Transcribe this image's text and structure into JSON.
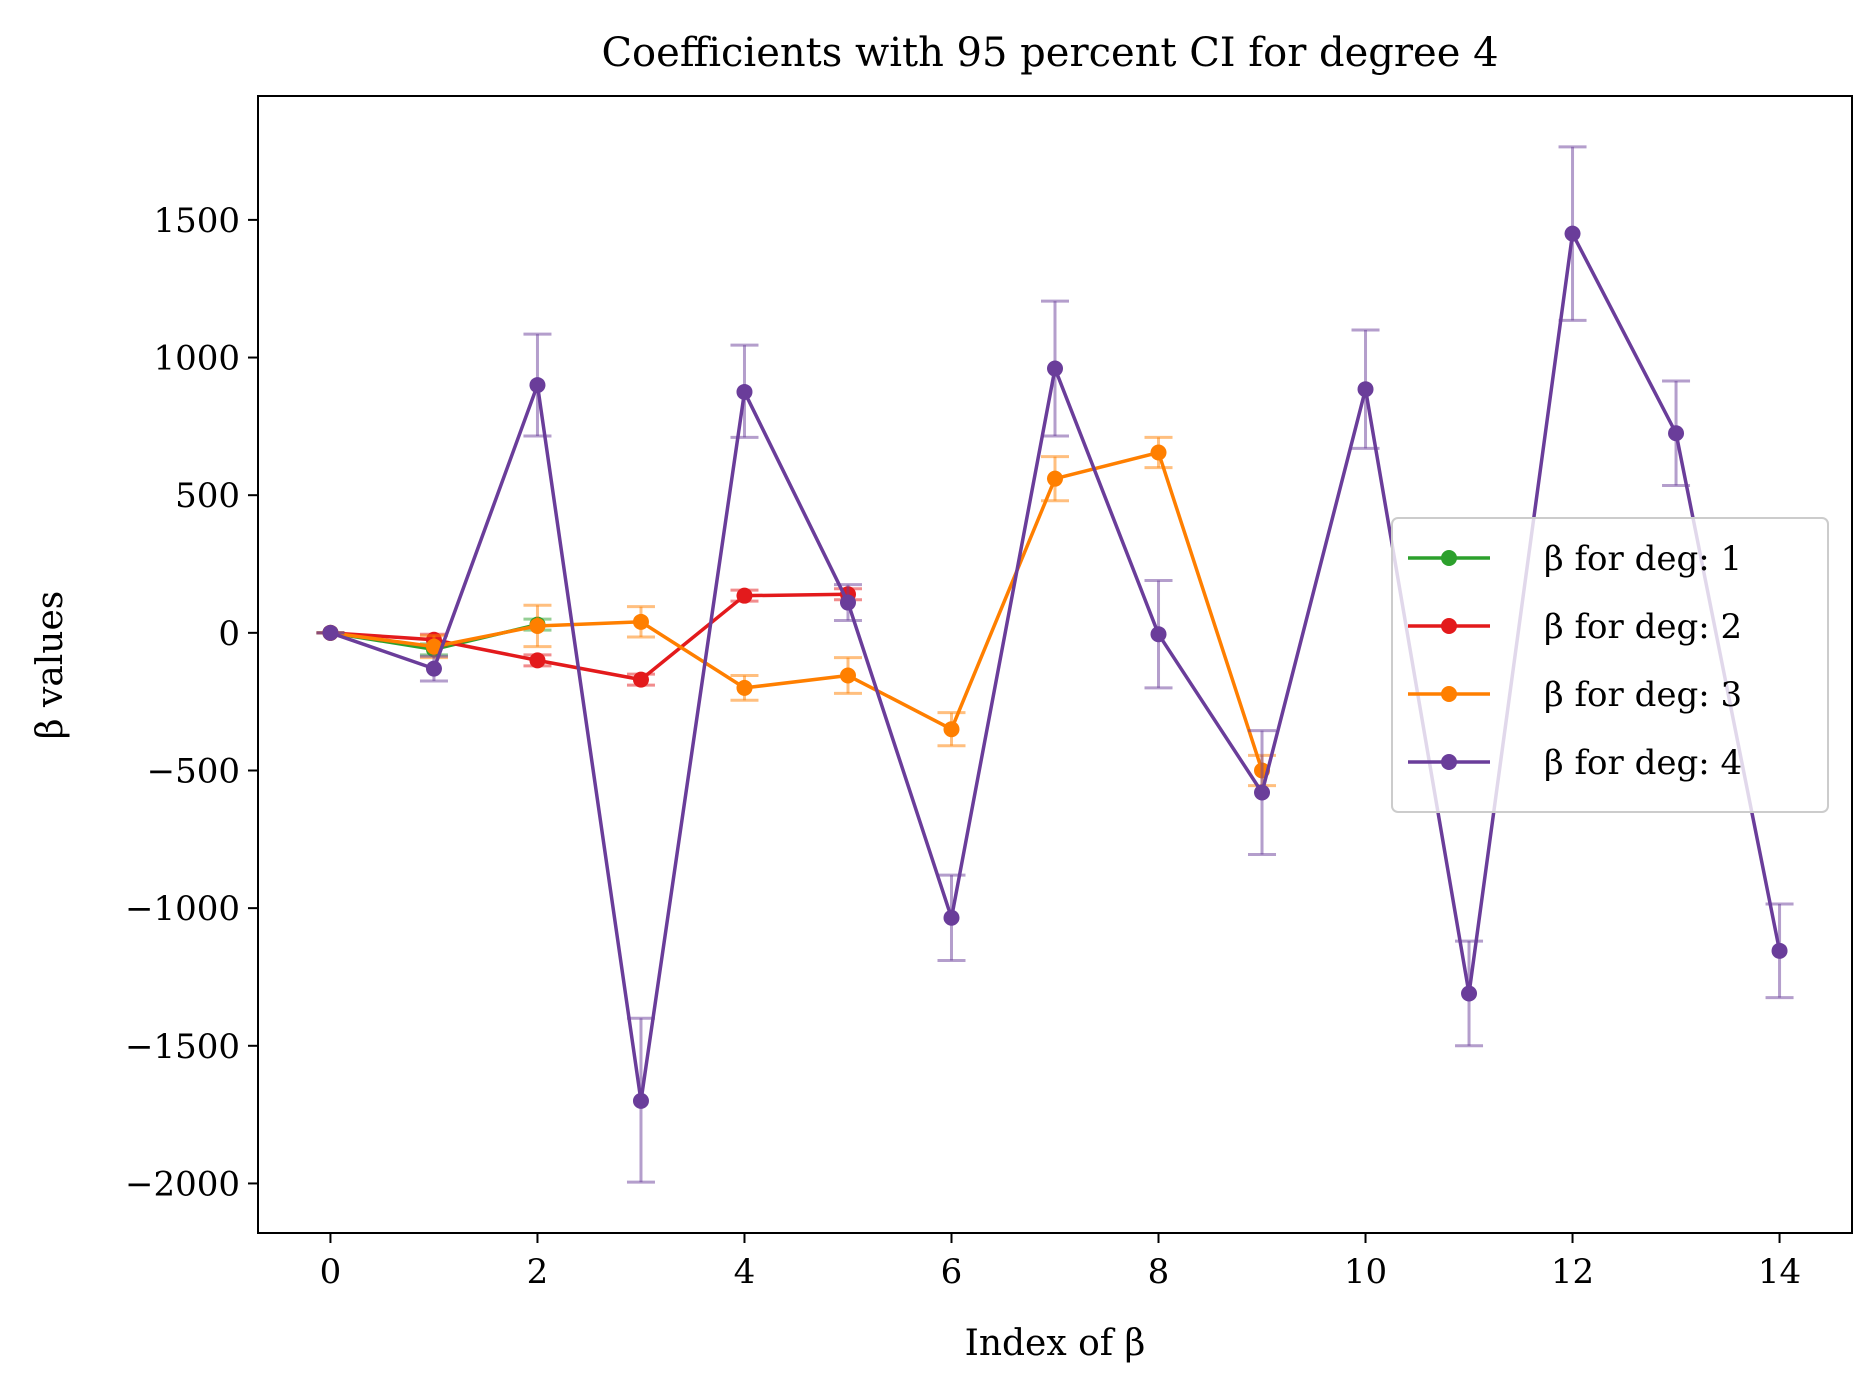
{
  "chart_data": {
    "type": "line",
    "title": "Coefficients with 95 percent CI for degree 4",
    "xlabel": "Index of β",
    "ylabel": "β values",
    "xlim": [
      -0.7,
      14.7
    ],
    "ylim": [
      -2180,
      1950
    ],
    "xticks": [
      0,
      2,
      4,
      6,
      8,
      10,
      12,
      14
    ],
    "xtick_labels": [
      "0",
      "2",
      "4",
      "6",
      "8",
      "10",
      "12",
      "14"
    ],
    "yticks": [
      -2000,
      -1500,
      -1000,
      -500,
      0,
      500,
      1000,
      1500
    ],
    "ytick_labels": [
      "−2000",
      "−1500",
      "−1000",
      "−500",
      "0",
      "500",
      "1000",
      "1500"
    ],
    "grid": false,
    "legend_position": "center-right",
    "series": [
      {
        "name": "β for deg: 1",
        "color": "#2ca02c",
        "x": [
          0,
          1,
          2
        ],
        "values": [
          0,
          -60,
          30
        ],
        "ci_low": [
          0,
          -80,
          10
        ],
        "ci_high": [
          0,
          -40,
          50
        ]
      },
      {
        "name": "β for deg: 2",
        "color": "#e31a1c",
        "x": [
          0,
          1,
          2,
          3,
          4,
          5
        ],
        "values": [
          0,
          -25,
          -100,
          -170,
          135,
          140
        ],
        "ci_low": [
          0,
          -45,
          -120,
          -190,
          115,
          120
        ],
        "ci_high": [
          0,
          -5,
          -80,
          -150,
          155,
          160
        ]
      },
      {
        "name": "β for deg: 3",
        "color": "#ff7f00",
        "x": [
          0,
          1,
          2,
          3,
          4,
          5,
          6,
          7,
          8,
          9
        ],
        "values": [
          0,
          -50,
          25,
          40,
          -200,
          -155,
          -350,
          560,
          655,
          -500
        ],
        "ci_low": [
          0,
          -90,
          -50,
          -15,
          -245,
          -220,
          -410,
          480,
          600,
          -555
        ],
        "ci_high": [
          0,
          -10,
          100,
          95,
          -155,
          -90,
          -290,
          640,
          710,
          -445
        ]
      },
      {
        "name": "β for deg: 4",
        "color": "#6a3d9a",
        "x": [
          0,
          1,
          2,
          3,
          4,
          5,
          6,
          7,
          8,
          9,
          10,
          11,
          12,
          13,
          14
        ],
        "values": [
          0,
          -130,
          900,
          -1700,
          875,
          110,
          -1035,
          960,
          -5,
          -580,
          885,
          -1310,
          1450,
          725,
          -1155
        ],
        "ci_low": [
          0,
          -175,
          715,
          -1995,
          710,
          45,
          -1190,
          715,
          -200,
          -805,
          670,
          -1500,
          1135,
          535,
          -1325
        ],
        "ci_high": [
          0,
          -85,
          1085,
          -1400,
          1045,
          175,
          -880,
          1205,
          190,
          -355,
          1100,
          -1120,
          1765,
          915,
          -985
        ]
      }
    ]
  }
}
